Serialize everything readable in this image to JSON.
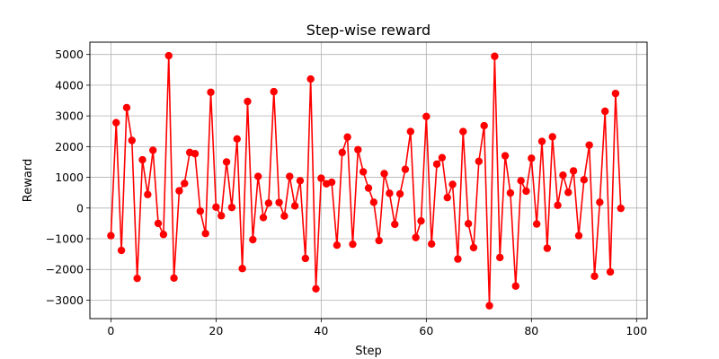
{
  "chart_data": {
    "type": "line",
    "title": "Step-wise reward",
    "xlabel": "Step",
    "ylabel": "Reward",
    "xlim": [
      -4,
      102
    ],
    "ylim": [
      -3600,
      5400
    ],
    "xticks": [
      0,
      20,
      40,
      60,
      80,
      100
    ],
    "yticks": [
      -3000,
      -2000,
      -1000,
      0,
      1000,
      2000,
      3000,
      4000,
      5000
    ],
    "xtick_labels": [
      "0",
      "20",
      "40",
      "60",
      "80",
      "100"
    ],
    "ytick_labels": [
      "−3000",
      "−2000",
      "−1000",
      "0",
      "1000",
      "2000",
      "3000",
      "4000",
      "5000"
    ],
    "grid": true,
    "line_color": "#ff0000",
    "marker": "circle",
    "series": [
      {
        "x": [
          0,
          1,
          2,
          3,
          4,
          5,
          6,
          7,
          8,
          9,
          10,
          11,
          12,
          13,
          14,
          15,
          16,
          17,
          18,
          19,
          20,
          21,
          22,
          23,
          24,
          25,
          26,
          27,
          28,
          29,
          30,
          31,
          32,
          33,
          34,
          35,
          36,
          37,
          38,
          39,
          40,
          41,
          42,
          43,
          44,
          45,
          46,
          47,
          48,
          49,
          50,
          51,
          52,
          53,
          54,
          55,
          56,
          57,
          58,
          59,
          60,
          61,
          62,
          63,
          64,
          65,
          66,
          67,
          68,
          69,
          70,
          71,
          72,
          73,
          74,
          75,
          76,
          77,
          78,
          79,
          80,
          81,
          82,
          83,
          84,
          85,
          86,
          87,
          88,
          89,
          90,
          91,
          92,
          93,
          94,
          95,
          96,
          97
        ],
        "values": [
          -900,
          2780,
          -1380,
          3270,
          2200,
          -2290,
          1570,
          440,
          1880,
          -500,
          -860,
          4960,
          -2280,
          560,
          800,
          1810,
          1770,
          -100,
          -830,
          3770,
          30,
          -250,
          1500,
          20,
          2250,
          -1970,
          3470,
          -1030,
          1030,
          -310,
          160,
          3790,
          180,
          -260,
          1030,
          70,
          890,
          -1640,
          4200,
          -2630,
          970,
          790,
          840,
          -1210,
          1810,
          2310,
          -1180,
          1900,
          1180,
          650,
          190,
          -1060,
          1120,
          480,
          -530,
          460,
          1260,
          2490,
          -960,
          -420,
          2980,
          -1170,
          1430,
          1640,
          340,
          770,
          -1660,
          2490,
          -510,
          -1290,
          1520,
          2680,
          -3180,
          4940,
          -1610,
          1700,
          490,
          -2540,
          890,
          550,
          1620,
          -520,
          2170,
          -1310,
          2320,
          90,
          1070,
          510,
          1210,
          -900,
          920,
          2050,
          -2220,
          190,
          3150,
          -2080,
          3730,
          -10
        ]
      }
    ]
  }
}
